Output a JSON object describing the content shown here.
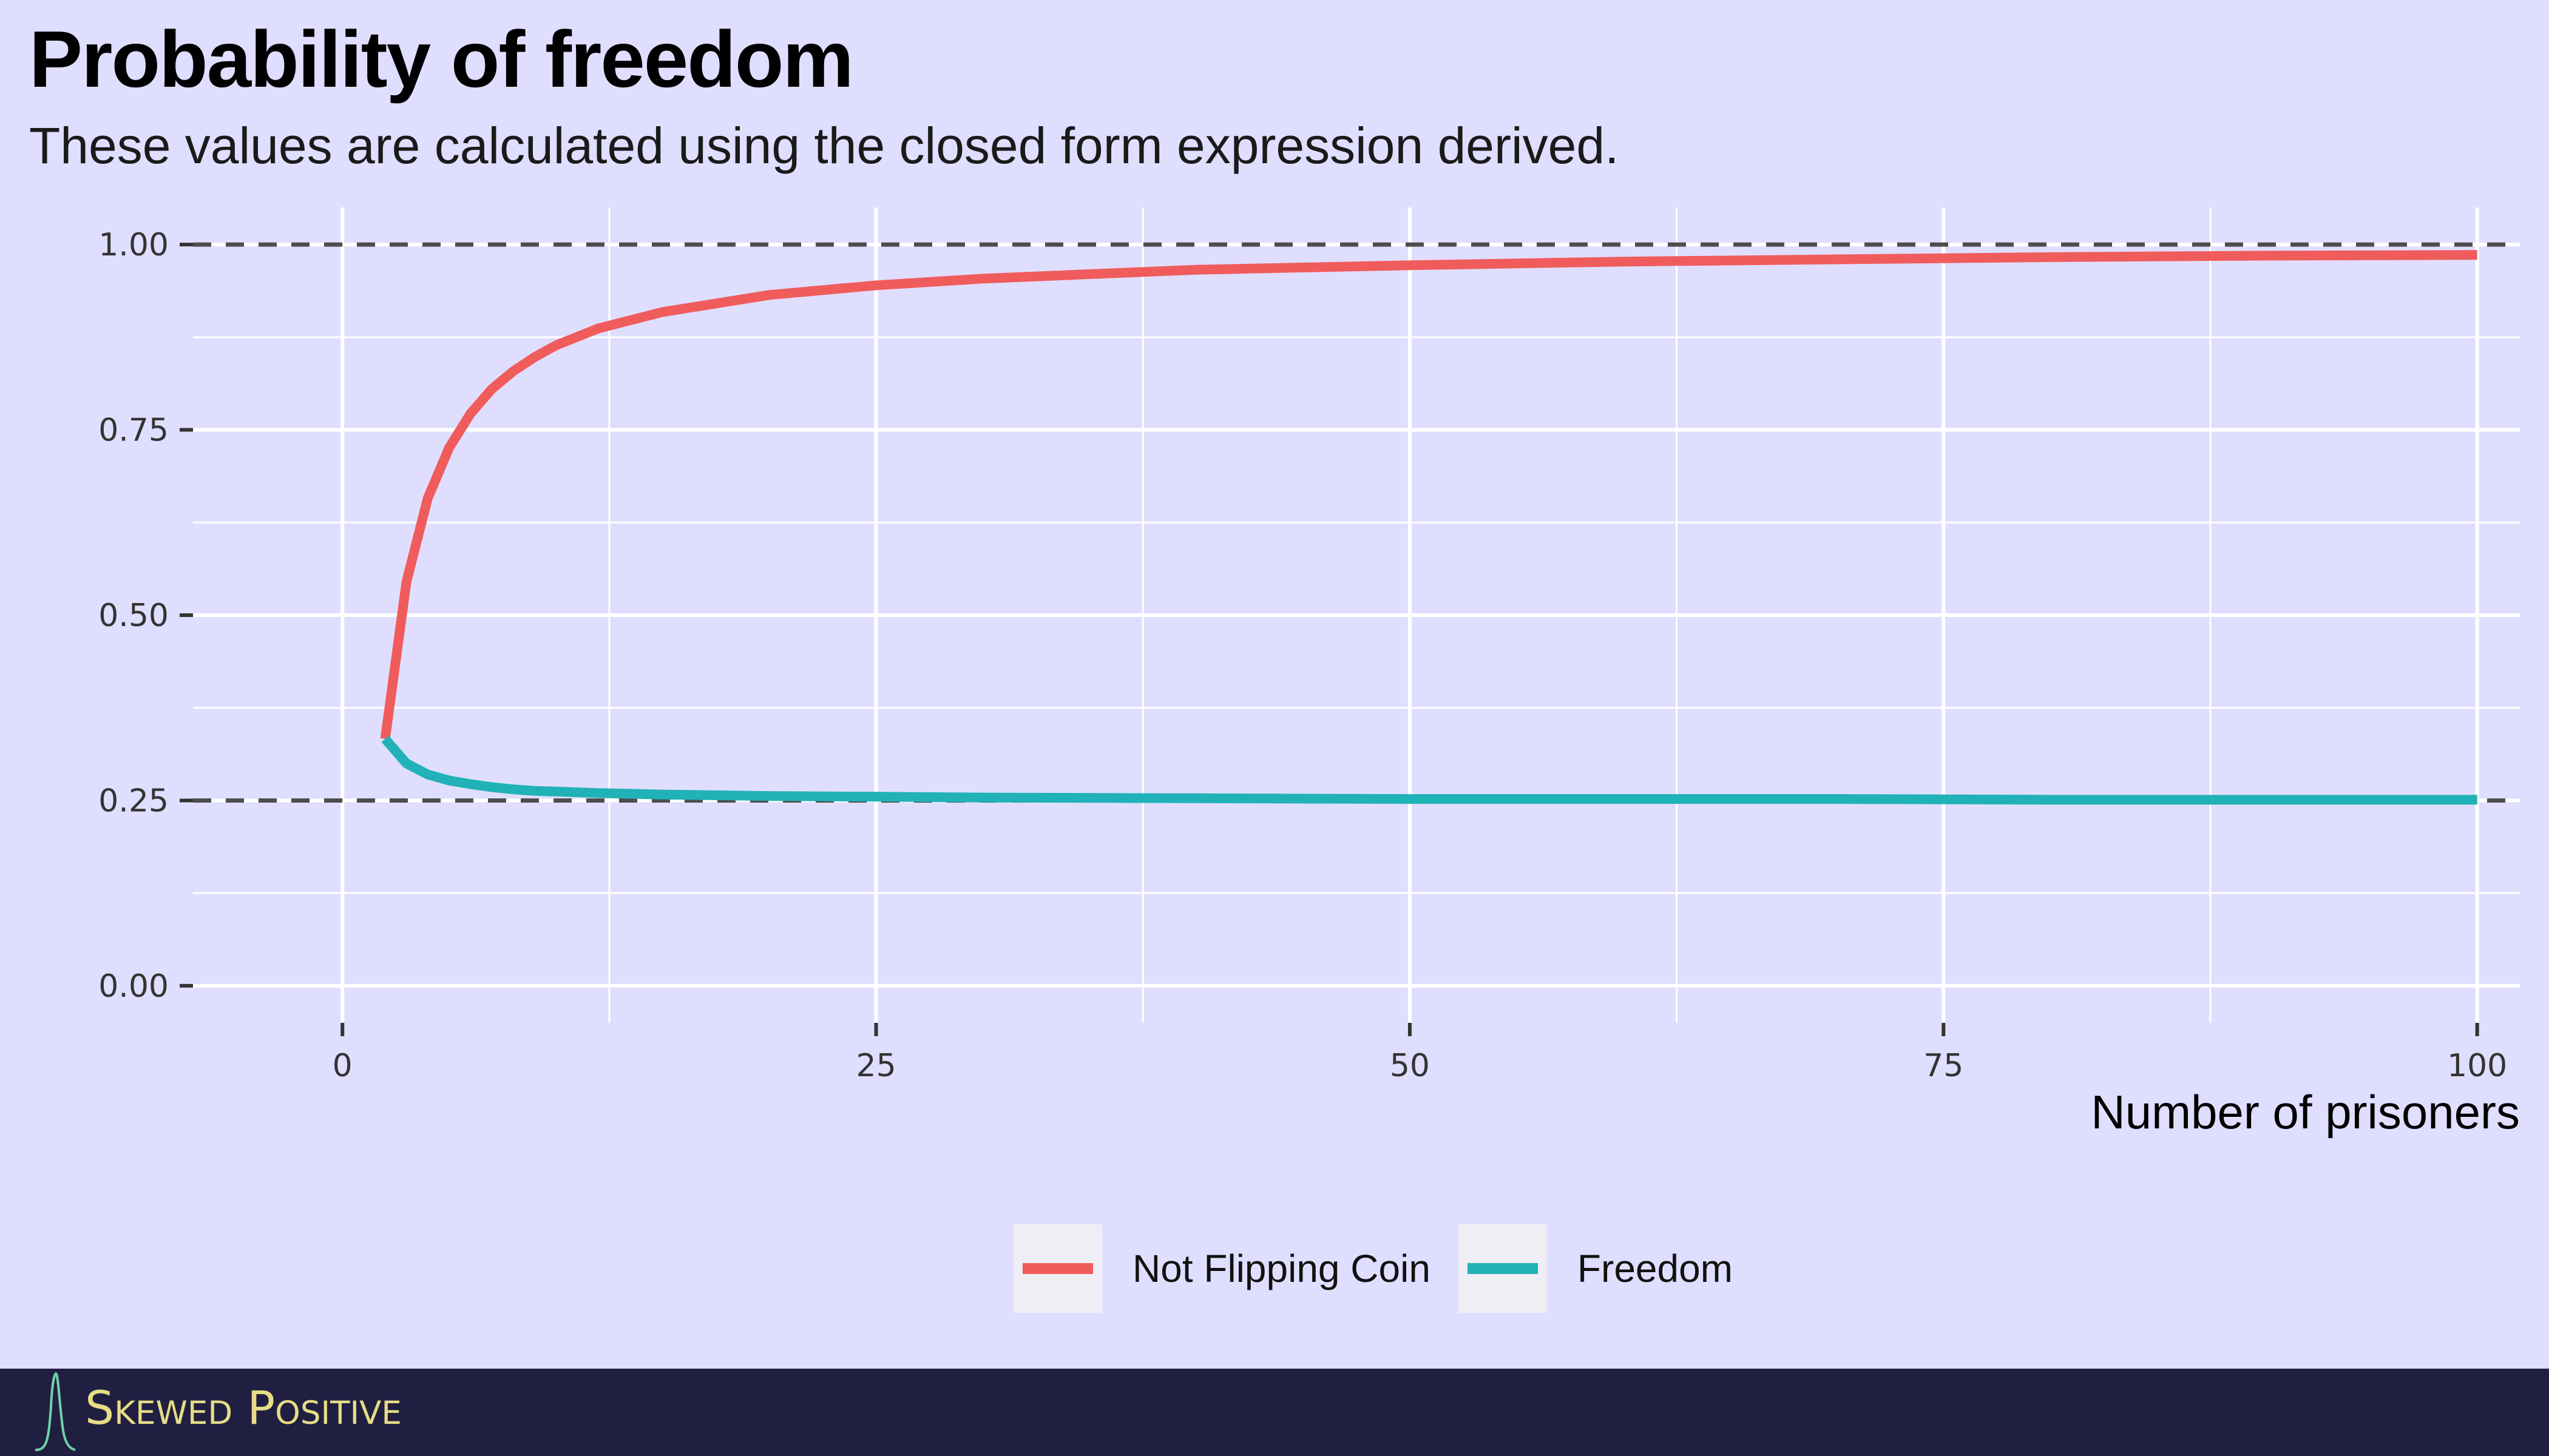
{
  "header": {
    "title": "Probability of freedom",
    "subtitle": "These values are calculated using the closed form expression derived."
  },
  "footer": {
    "brand": "Skewed Positive"
  },
  "colors": {
    "background": "#e0deff",
    "grid": "#ffffff",
    "reference_line": "#4d4d4d",
    "not_flipping_coin": "#f05c5c",
    "freedom": "#20b2b6",
    "footer_background": "#211f41",
    "footer_text": "#e6dd86"
  },
  "chart_data": {
    "type": "line",
    "title": "Probability of freedom",
    "subtitle": "These values are calculated using the closed form expression derived.",
    "xlabel": "Number of prisoners",
    "ylabel": "",
    "xlim": [
      -7,
      102
    ],
    "ylim": [
      -0.05,
      1.05
    ],
    "x_ticks": [
      0,
      25,
      50,
      75,
      100
    ],
    "x_tick_labels": [
      "0",
      "25",
      "50",
      "75",
      "100"
    ],
    "y_ticks": [
      0,
      0.25,
      0.5,
      0.75,
      1.0
    ],
    "y_tick_labels": [
      "0.00",
      "0.25",
      "0.50",
      "0.75",
      "1.00"
    ],
    "grid": true,
    "legend_position": "bottom",
    "reference_lines": [
      {
        "axis": "y",
        "value": 1.0,
        "style": "dashed"
      },
      {
        "axis": "y",
        "value": 0.25,
        "style": "dashed"
      }
    ],
    "x": [
      2,
      3,
      4,
      5,
      6,
      7,
      8,
      9,
      10,
      12,
      15,
      20,
      25,
      30,
      40,
      50,
      60,
      70,
      80,
      90,
      100
    ],
    "series": [
      {
        "name": "Not Flipping Coin",
        "values": [
          0.333,
          0.545,
          0.658,
          0.726,
          0.772,
          0.805,
          0.829,
          0.848,
          0.864,
          0.887,
          0.909,
          0.932,
          0.945,
          0.954,
          0.966,
          0.972,
          0.977,
          0.98,
          0.983,
          0.985,
          0.986
        ]
      },
      {
        "name": "Freedom",
        "values": [
          0.333,
          0.3,
          0.285,
          0.277,
          0.272,
          0.268,
          0.265,
          0.263,
          0.262,
          0.26,
          0.258,
          0.256,
          0.255,
          0.254,
          0.253,
          0.252,
          0.252,
          0.252,
          0.251,
          0.251,
          0.251
        ]
      }
    ]
  }
}
